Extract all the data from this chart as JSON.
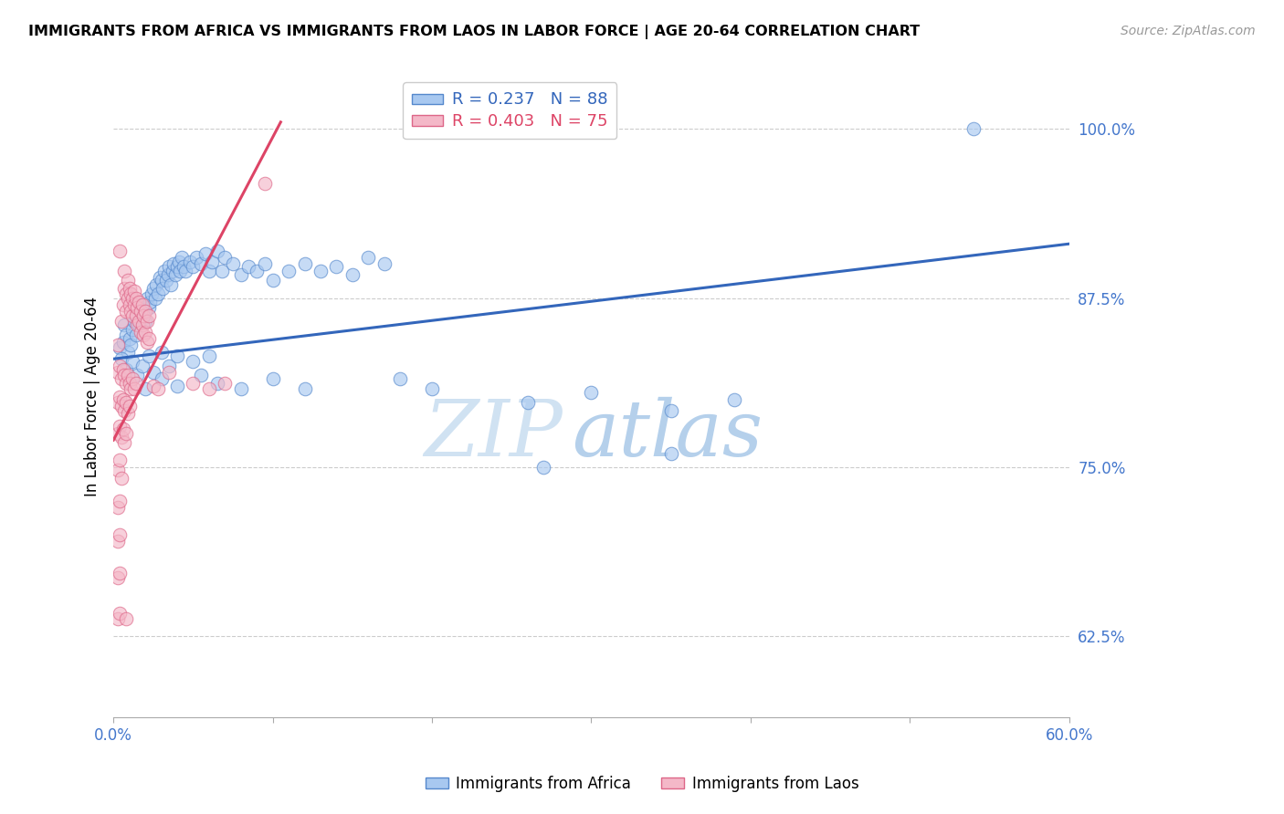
{
  "title": "IMMIGRANTS FROM AFRICA VS IMMIGRANTS FROM LAOS IN LABOR FORCE | AGE 20-64 CORRELATION CHART",
  "source": "Source: ZipAtlas.com",
  "ylabel": "In Labor Force | Age 20-64",
  "xmin": 0.0,
  "xmax": 0.6,
  "ymin": 0.565,
  "ymax": 1.04,
  "yticks": [
    0.625,
    0.75,
    0.875,
    1.0
  ],
  "ytick_labels": [
    "62.5%",
    "75.0%",
    "87.5%",
    "100.0%"
  ],
  "xticks": [
    0.0,
    0.1,
    0.2,
    0.3,
    0.4,
    0.5,
    0.6
  ],
  "xtick_labels": [
    "0.0%",
    "",
    "",
    "",
    "",
    "",
    "60.0%"
  ],
  "africa_color": "#a8c8f0",
  "laos_color": "#f4b8c8",
  "africa_edge_color": "#5588cc",
  "laos_edge_color": "#dd6688",
  "africa_line_color": "#3366bb",
  "laos_line_color": "#dd4466",
  "watermark": "ZIPatlas",
  "africa_line": [
    [
      0.0,
      0.83
    ],
    [
      0.6,
      0.915
    ]
  ],
  "laos_line": [
    [
      0.0,
      0.77
    ],
    [
      0.105,
      1.005
    ]
  ],
  "africa_scatter": [
    [
      0.004,
      0.838
    ],
    [
      0.006,
      0.842
    ],
    [
      0.007,
      0.855
    ],
    [
      0.008,
      0.848
    ],
    [
      0.009,
      0.835
    ],
    [
      0.01,
      0.845
    ],
    [
      0.011,
      0.84
    ],
    [
      0.012,
      0.852
    ],
    [
      0.013,
      0.858
    ],
    [
      0.014,
      0.848
    ],
    [
      0.015,
      0.862
    ],
    [
      0.016,
      0.855
    ],
    [
      0.017,
      0.87
    ],
    [
      0.018,
      0.86
    ],
    [
      0.019,
      0.865
    ],
    [
      0.02,
      0.858
    ],
    [
      0.021,
      0.875
    ],
    [
      0.022,
      0.868
    ],
    [
      0.023,
      0.872
    ],
    [
      0.024,
      0.878
    ],
    [
      0.025,
      0.882
    ],
    [
      0.026,
      0.875
    ],
    [
      0.027,
      0.885
    ],
    [
      0.028,
      0.878
    ],
    [
      0.029,
      0.89
    ],
    [
      0.03,
      0.888
    ],
    [
      0.031,
      0.882
    ],
    [
      0.032,
      0.895
    ],
    [
      0.033,
      0.888
    ],
    [
      0.034,
      0.892
    ],
    [
      0.035,
      0.898
    ],
    [
      0.036,
      0.885
    ],
    [
      0.037,
      0.895
    ],
    [
      0.038,
      0.9
    ],
    [
      0.039,
      0.892
    ],
    [
      0.04,
      0.898
    ],
    [
      0.041,
      0.902
    ],
    [
      0.042,
      0.895
    ],
    [
      0.043,
      0.905
    ],
    [
      0.044,
      0.898
    ],
    [
      0.045,
      0.895
    ],
    [
      0.048,
      0.902
    ],
    [
      0.05,
      0.898
    ],
    [
      0.052,
      0.905
    ],
    [
      0.055,
      0.9
    ],
    [
      0.058,
      0.908
    ],
    [
      0.06,
      0.895
    ],
    [
      0.062,
      0.902
    ],
    [
      0.065,
      0.91
    ],
    [
      0.068,
      0.895
    ],
    [
      0.07,
      0.905
    ],
    [
      0.075,
      0.9
    ],
    [
      0.08,
      0.892
    ],
    [
      0.085,
      0.898
    ],
    [
      0.09,
      0.895
    ],
    [
      0.095,
      0.9
    ],
    [
      0.1,
      0.888
    ],
    [
      0.11,
      0.895
    ],
    [
      0.12,
      0.9
    ],
    [
      0.13,
      0.895
    ],
    [
      0.14,
      0.898
    ],
    [
      0.15,
      0.892
    ],
    [
      0.16,
      0.905
    ],
    [
      0.17,
      0.9
    ],
    [
      0.005,
      0.83
    ],
    [
      0.008,
      0.822
    ],
    [
      0.012,
      0.828
    ],
    [
      0.015,
      0.818
    ],
    [
      0.018,
      0.825
    ],
    [
      0.022,
      0.832
    ],
    [
      0.025,
      0.82
    ],
    [
      0.03,
      0.835
    ],
    [
      0.035,
      0.825
    ],
    [
      0.04,
      0.832
    ],
    [
      0.05,
      0.828
    ],
    [
      0.06,
      0.832
    ],
    [
      0.02,
      0.808
    ],
    [
      0.03,
      0.815
    ],
    [
      0.04,
      0.81
    ],
    [
      0.055,
      0.818
    ],
    [
      0.065,
      0.812
    ],
    [
      0.08,
      0.808
    ],
    [
      0.1,
      0.815
    ],
    [
      0.12,
      0.808
    ],
    [
      0.18,
      0.815
    ],
    [
      0.2,
      0.808
    ],
    [
      0.26,
      0.798
    ],
    [
      0.3,
      0.805
    ],
    [
      0.35,
      0.792
    ],
    [
      0.39,
      0.8
    ],
    [
      0.27,
      0.75
    ],
    [
      0.35,
      0.76
    ],
    [
      0.54,
      1.0
    ]
  ],
  "laos_scatter": [
    [
      0.003,
      0.84
    ],
    [
      0.004,
      0.91
    ],
    [
      0.005,
      0.858
    ],
    [
      0.006,
      0.87
    ],
    [
      0.007,
      0.882
    ],
    [
      0.007,
      0.895
    ],
    [
      0.008,
      0.878
    ],
    [
      0.008,
      0.865
    ],
    [
      0.009,
      0.875
    ],
    [
      0.009,
      0.888
    ],
    [
      0.01,
      0.87
    ],
    [
      0.01,
      0.882
    ],
    [
      0.011,
      0.878
    ],
    [
      0.011,
      0.865
    ],
    [
      0.012,
      0.875
    ],
    [
      0.012,
      0.862
    ],
    [
      0.013,
      0.88
    ],
    [
      0.013,
      0.87
    ],
    [
      0.014,
      0.875
    ],
    [
      0.014,
      0.862
    ],
    [
      0.015,
      0.868
    ],
    [
      0.015,
      0.855
    ],
    [
      0.016,
      0.872
    ],
    [
      0.016,
      0.858
    ],
    [
      0.017,
      0.865
    ],
    [
      0.017,
      0.85
    ],
    [
      0.018,
      0.87
    ],
    [
      0.018,
      0.855
    ],
    [
      0.019,
      0.862
    ],
    [
      0.019,
      0.848
    ],
    [
      0.02,
      0.865
    ],
    [
      0.02,
      0.85
    ],
    [
      0.021,
      0.858
    ],
    [
      0.021,
      0.842
    ],
    [
      0.022,
      0.862
    ],
    [
      0.022,
      0.845
    ],
    [
      0.003,
      0.82
    ],
    [
      0.004,
      0.825
    ],
    [
      0.005,
      0.815
    ],
    [
      0.006,
      0.822
    ],
    [
      0.007,
      0.818
    ],
    [
      0.008,
      0.812
    ],
    [
      0.009,
      0.818
    ],
    [
      0.01,
      0.812
    ],
    [
      0.011,
      0.808
    ],
    [
      0.012,
      0.815
    ],
    [
      0.013,
      0.808
    ],
    [
      0.014,
      0.812
    ],
    [
      0.003,
      0.798
    ],
    [
      0.004,
      0.802
    ],
    [
      0.005,
      0.795
    ],
    [
      0.006,
      0.8
    ],
    [
      0.007,
      0.792
    ],
    [
      0.008,
      0.798
    ],
    [
      0.009,
      0.79
    ],
    [
      0.01,
      0.795
    ],
    [
      0.003,
      0.775
    ],
    [
      0.004,
      0.78
    ],
    [
      0.005,
      0.772
    ],
    [
      0.006,
      0.778
    ],
    [
      0.007,
      0.768
    ],
    [
      0.008,
      0.775
    ],
    [
      0.003,
      0.748
    ],
    [
      0.004,
      0.755
    ],
    [
      0.005,
      0.742
    ],
    [
      0.003,
      0.72
    ],
    [
      0.004,
      0.725
    ],
    [
      0.003,
      0.695
    ],
    [
      0.004,
      0.7
    ],
    [
      0.003,
      0.668
    ],
    [
      0.004,
      0.672
    ],
    [
      0.003,
      0.638
    ],
    [
      0.004,
      0.642
    ],
    [
      0.008,
      0.638
    ],
    [
      0.025,
      0.81
    ],
    [
      0.028,
      0.808
    ],
    [
      0.035,
      0.82
    ],
    [
      0.05,
      0.812
    ],
    [
      0.06,
      0.808
    ],
    [
      0.07,
      0.812
    ],
    [
      0.095,
      0.96
    ]
  ]
}
